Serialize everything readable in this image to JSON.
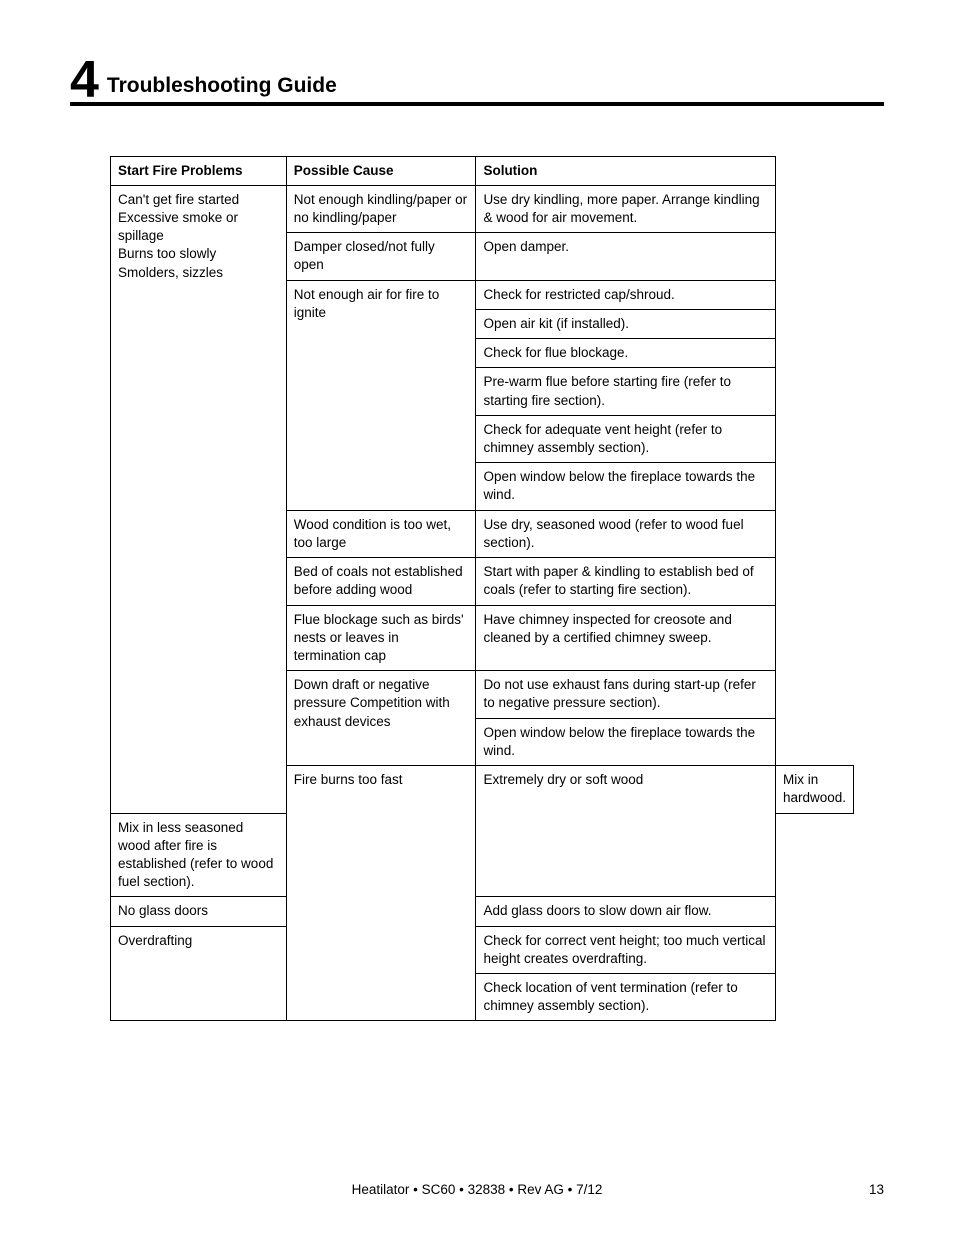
{
  "section": {
    "number": "4",
    "title": "Troubleshooting Guide"
  },
  "table": {
    "headers": {
      "problem": "Start Fire Problems",
      "cause": "Possible Cause",
      "solution": "Solution"
    },
    "groups": [
      {
        "problem": "Can't get fire started\nExcessive smoke or spillage\nBurns too slowly\nSmolders, sizzles",
        "causes": [
          {
            "cause": "Not enough kindling/paper or no kindling/paper",
            "solutions": [
              "Use dry kindling, more paper. Arrange kindling & wood for air movement."
            ]
          },
          {
            "cause": "Damper closed/not fully open",
            "solutions": [
              "Open damper."
            ]
          },
          {
            "cause": "Not enough air for fire to ignite",
            "solutions": [
              "Check for restricted cap/shroud.",
              "Open air kit (if installed).",
              "Check for flue blockage.",
              "Pre-warm flue before starting fire (refer to starting fire section).",
              "Check for adequate vent height (refer to chimney assembly section).",
              "Open window below the fireplace towards the wind."
            ]
          },
          {
            "cause": "Wood condition is too wet, too large",
            "solutions": [
              "Use dry, seasoned wood (refer to wood fuel section)."
            ]
          },
          {
            "cause": "Bed of coals not established before adding wood",
            "solutions": [
              "Start with paper & kindling to establish bed of coals (refer to starting fire section)."
            ]
          },
          {
            "cause": "Flue blockage such as birds' nests or leaves in termination cap",
            "solutions": [
              "Have chimney inspected for creosote and cleaned by a certified chimney sweep."
            ]
          },
          {
            "cause": "Down draft or negative pressure Competition with exhaust devices",
            "solutions": [
              "Do not use exhaust fans during start-up (refer to negative pressure section).",
              "Open window below the fireplace towards the wind."
            ]
          }
        ]
      },
      {
        "problem": "Fire burns too fast",
        "causes": [
          {
            "cause": "Extremely dry or soft wood",
            "solutions": [
              "Mix in hardwood.",
              "Mix in less seasoned wood after fire is established (refer to wood fuel section)."
            ]
          },
          {
            "cause": "No glass doors",
            "solutions": [
              "Add glass doors to slow down air flow."
            ]
          },
          {
            "cause": "Overdrafting",
            "solutions": [
              "Check for correct vent height; too much vertical height creates overdrafting.",
              "Check location of vent termination (refer to chimney assembly section)."
            ]
          }
        ]
      }
    ]
  },
  "footer": {
    "text": "Heatilator • SC60 • 32838 • Rev AG • 7/12",
    "page": "13"
  }
}
